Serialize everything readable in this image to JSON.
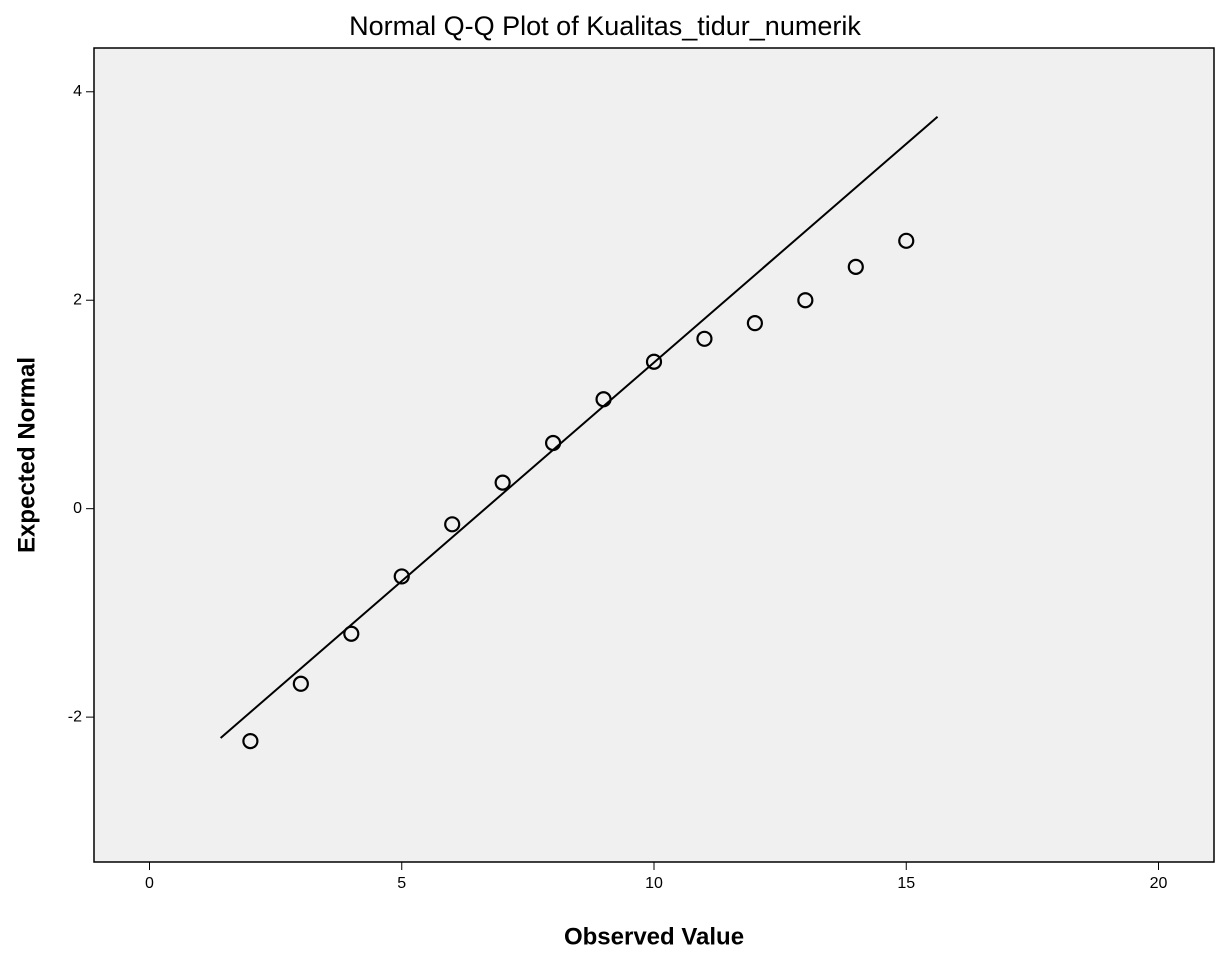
{
  "chart_data": {
    "type": "scatter",
    "title": "Normal Q-Q Plot of Kualitas_tidur_numerik",
    "x_label": "Observed Value",
    "y_label": "Expected Normal",
    "x": [
      2,
      3,
      4,
      5,
      6,
      7,
      8,
      9,
      10,
      11,
      12,
      13,
      14,
      15
    ],
    "values": [
      -2.23,
      -1.68,
      -1.2,
      -0.65,
      -0.15,
      0.25,
      0.63,
      1.05,
      1.41,
      1.63,
      1.78,
      2.0,
      2.32,
      2.57
    ],
    "color": "#000000",
    "reference_line": {
      "x": [
        1.41,
        15.62
      ],
      "y": [
        -2.2,
        3.76
      ]
    },
    "xlim": [
      -1.1,
      21.1
    ],
    "xticks": [
      0,
      5,
      10,
      15,
      20
    ],
    "ylim": [
      -3.39,
      4.42
    ],
    "yticks": [
      -2,
      0,
      2,
      4
    ],
    "grid": false
  }
}
